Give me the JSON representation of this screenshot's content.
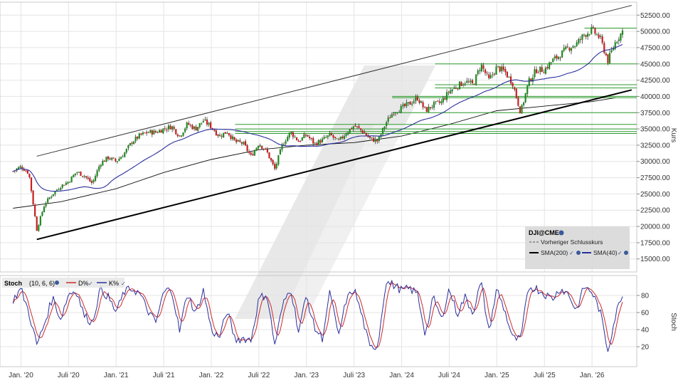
{
  "chart_data": [
    {
      "type": "candlestick",
      "symbol": "DJI@CME",
      "y_axis_label": "Kurs",
      "ylim": [
        13000,
        54500
      ],
      "y_ticks": [
        15000,
        17500,
        20000,
        22500,
        25000,
        27500,
        30000,
        32500,
        35000,
        37500,
        40000,
        42500,
        45000,
        47500,
        50000,
        52500
      ],
      "y_tick_labels": [
        "15000.00",
        "17500.00",
        "20000.00",
        "22500.00",
        "25000.00",
        "27500.00",
        "30000.00",
        "32500.00",
        "35000.00",
        "37500.00",
        "40000.00",
        "42500.00",
        "45000.00",
        "47500.00",
        "50000.00",
        "52500.00"
      ],
      "x_ticks": [
        "Jan. '20",
        "Juli '20",
        "Jan. '21",
        "Juli '21",
        "Jan. '22",
        "Juli '22",
        "Jan. '23",
        "Juli '23",
        "Jan. '24",
        "Juli '24",
        "Jan. '25",
        "Juli '25",
        "Jan. '26"
      ],
      "price_path": [
        [
          "2019-12",
          28500
        ],
        [
          "2020-01",
          29200
        ],
        [
          "2020-02",
          28200
        ],
        [
          "2020-03",
          19500
        ],
        [
          "2020-04",
          23500
        ],
        [
          "2020-05",
          25000
        ],
        [
          "2020-06",
          26200
        ],
        [
          "2020-07",
          26900
        ],
        [
          "2020-08",
          28400
        ],
        [
          "2020-09",
          27800
        ],
        [
          "2020-10",
          26600
        ],
        [
          "2020-11",
          29700
        ],
        [
          "2020-12",
          30600
        ],
        [
          "2021-01",
          30000
        ],
        [
          "2021-02",
          31200
        ],
        [
          "2021-03",
          33000
        ],
        [
          "2021-04",
          34000
        ],
        [
          "2021-05",
          34500
        ],
        [
          "2021-06",
          34500
        ],
        [
          "2021-07",
          35000
        ],
        [
          "2021-08",
          35400
        ],
        [
          "2021-09",
          33900
        ],
        [
          "2021-10",
          35800
        ],
        [
          "2021-11",
          35000
        ],
        [
          "2021-12",
          36300
        ],
        [
          "2022-01",
          35300
        ],
        [
          "2022-02",
          33900
        ],
        [
          "2022-03",
          34600
        ],
        [
          "2022-04",
          33000
        ],
        [
          "2022-05",
          32800
        ],
        [
          "2022-06",
          30800
        ],
        [
          "2022-07",
          32800
        ],
        [
          "2022-08",
          31500
        ],
        [
          "2022-09",
          28800
        ],
        [
          "2022-10",
          32700
        ],
        [
          "2022-11",
          34500
        ],
        [
          "2022-12",
          33100
        ],
        [
          "2023-01",
          34100
        ],
        [
          "2023-02",
          32700
        ],
        [
          "2023-03",
          33300
        ],
        [
          "2023-04",
          34100
        ],
        [
          "2023-05",
          33000
        ],
        [
          "2023-06",
          34400
        ],
        [
          "2023-07",
          35500
        ],
        [
          "2023-08",
          34700
        ],
        [
          "2023-09",
          33500
        ],
        [
          "2023-10",
          33100
        ],
        [
          "2023-11",
          35900
        ],
        [
          "2023-12",
          37700
        ],
        [
          "2024-01",
          38200
        ],
        [
          "2024-02",
          38900
        ],
        [
          "2024-03",
          39800
        ],
        [
          "2024-04",
          37800
        ],
        [
          "2024-05",
          38700
        ],
        [
          "2024-06",
          39100
        ],
        [
          "2024-07",
          40800
        ],
        [
          "2024-08",
          41600
        ],
        [
          "2024-09",
          42300
        ],
        [
          "2024-10",
          41800
        ],
        [
          "2024-11",
          44900
        ],
        [
          "2024-12",
          42500
        ],
        [
          "2025-01",
          44500
        ],
        [
          "2025-02",
          43800
        ],
        [
          "2025-03",
          42000
        ],
        [
          "2025-04",
          37500
        ],
        [
          "2025-05",
          42200
        ],
        [
          "2025-06",
          44100
        ],
        [
          "2025-07",
          44100
        ],
        [
          "2025-08",
          45500
        ],
        [
          "2025-09",
          46400
        ],
        [
          "2025-10",
          47500
        ],
        [
          "2025-11",
          48000
        ],
        [
          "2025-12",
          49500
        ],
        [
          "2026-01",
          50200
        ],
        [
          "2026-02",
          49000
        ],
        [
          "2026-03",
          45500
        ],
        [
          "2026-04",
          48500
        ],
        [
          "2026-05",
          50300
        ]
      ],
      "horizontal_levels": [
        50500,
        45000,
        41800,
        41300,
        40000,
        39800,
        37500,
        35700,
        35000,
        34600,
        34300
      ],
      "trendlines": [
        {
          "from": [
            "2020-03",
            18000
          ],
          "to": [
            "2026-06",
            41000
          ]
        },
        {
          "from": [
            "2020-03",
            30800
          ],
          "to": [
            "2026-06",
            54000
          ]
        }
      ],
      "sma200_path": [
        [
          "2019-12",
          22800
        ],
        [
          "2020-06",
          23800
        ],
        [
          "2021-01",
          25800
        ],
        [
          "2021-07",
          28300
        ],
        [
          "2022-01",
          30300
        ],
        [
          "2022-07",
          31800
        ],
        [
          "2023-01",
          32500
        ],
        [
          "2023-07",
          32900
        ],
        [
          "2024-01",
          33900
        ],
        [
          "2024-07",
          35700
        ],
        [
          "2025-01",
          37800
        ],
        [
          "2025-07",
          38500
        ],
        [
          "2026-01",
          39200
        ],
        [
          "2026-04",
          39800
        ]
      ],
      "legend": {
        "title": "DJI@CME",
        "items": [
          {
            "label": "Vorheriger Schlusskurs",
            "style": "dashed",
            "color": "#555555"
          },
          {
            "label": "SMA(200)",
            "color": "#000000"
          },
          {
            "label": "SMA(40)",
            "color": "#2b2f9c"
          }
        ]
      }
    },
    {
      "type": "line",
      "name": "Stoch",
      "params": "(10, 6, 6)",
      "y_axis_label": "Stoch",
      "ylim": [
        0,
        100
      ],
      "y_ticks": [
        20,
        40,
        60,
        80
      ],
      "series": [
        {
          "name": "D%",
          "color": "#cc2b2b",
          "smooth_of": "K"
        },
        {
          "name": "K%",
          "color": "#2b2f9c",
          "values": [
            [
              "2019-12",
              75
            ],
            [
              "2020-01",
              88
            ],
            [
              "2020-02",
              60
            ],
            [
              "2020-03",
              22
            ],
            [
              "2020-04",
              48
            ],
            [
              "2020-05",
              78
            ],
            [
              "2020-06",
              52
            ],
            [
              "2020-07",
              82
            ],
            [
              "2020-08",
              86
            ],
            [
              "2020-09",
              56
            ],
            [
              "2020-10",
              48
            ],
            [
              "2020-11",
              88
            ],
            [
              "2020-12",
              78
            ],
            [
              "2021-01",
              60
            ],
            [
              "2021-02",
              84
            ],
            [
              "2021-03",
              88
            ],
            [
              "2021-04",
              82
            ],
            [
              "2021-05",
              62
            ],
            [
              "2021-06",
              48
            ],
            [
              "2021-07",
              84
            ],
            [
              "2021-08",
              88
            ],
            [
              "2021-09",
              38
            ],
            [
              "2021-10",
              84
            ],
            [
              "2021-11",
              58
            ],
            [
              "2021-12",
              86
            ],
            [
              "2022-01",
              40
            ],
            [
              "2022-02",
              30
            ],
            [
              "2022-03",
              62
            ],
            [
              "2022-04",
              28
            ],
            [
              "2022-05",
              30
            ],
            [
              "2022-06",
              28
            ],
            [
              "2022-07",
              76
            ],
            [
              "2022-08",
              82
            ],
            [
              "2022-09",
              22
            ],
            [
              "2022-10",
              68
            ],
            [
              "2022-11",
              90
            ],
            [
              "2022-12",
              38
            ],
            [
              "2023-01",
              80
            ],
            [
              "2023-02",
              42
            ],
            [
              "2023-03",
              30
            ],
            [
              "2023-04",
              86
            ],
            [
              "2023-05",
              30
            ],
            [
              "2023-06",
              74
            ],
            [
              "2023-07",
              88
            ],
            [
              "2023-08",
              56
            ],
            [
              "2023-09",
              18
            ],
            [
              "2023-10",
              22
            ],
            [
              "2023-11",
              96
            ],
            [
              "2023-12",
              92
            ],
            [
              "2024-01",
              86
            ],
            [
              "2024-02",
              88
            ],
            [
              "2024-03",
              82
            ],
            [
              "2024-04",
              34
            ],
            [
              "2024-05",
              78
            ],
            [
              "2024-06",
              52
            ],
            [
              "2024-07",
              88
            ],
            [
              "2024-08",
              58
            ],
            [
              "2024-09",
              78
            ],
            [
              "2024-10",
              60
            ],
            [
              "2024-11",
              96
            ],
            [
              "2024-12",
              38
            ],
            [
              "2025-01",
              88
            ],
            [
              "2025-02",
              62
            ],
            [
              "2025-03",
              30
            ],
            [
              "2025-04",
              28
            ],
            [
              "2025-05",
              90
            ],
            [
              "2025-06",
              88
            ],
            [
              "2025-07",
              82
            ],
            [
              "2025-08",
              76
            ],
            [
              "2025-09",
              88
            ],
            [
              "2025-10",
              82
            ],
            [
              "2025-11",
              62
            ],
            [
              "2025-12",
              90
            ],
            [
              "2026-01",
              84
            ],
            [
              "2026-02",
              62
            ],
            [
              "2026-03",
              16
            ],
            [
              "2026-04",
              58
            ],
            [
              "2026-05",
              88
            ]
          ]
        }
      ]
    }
  ]
}
